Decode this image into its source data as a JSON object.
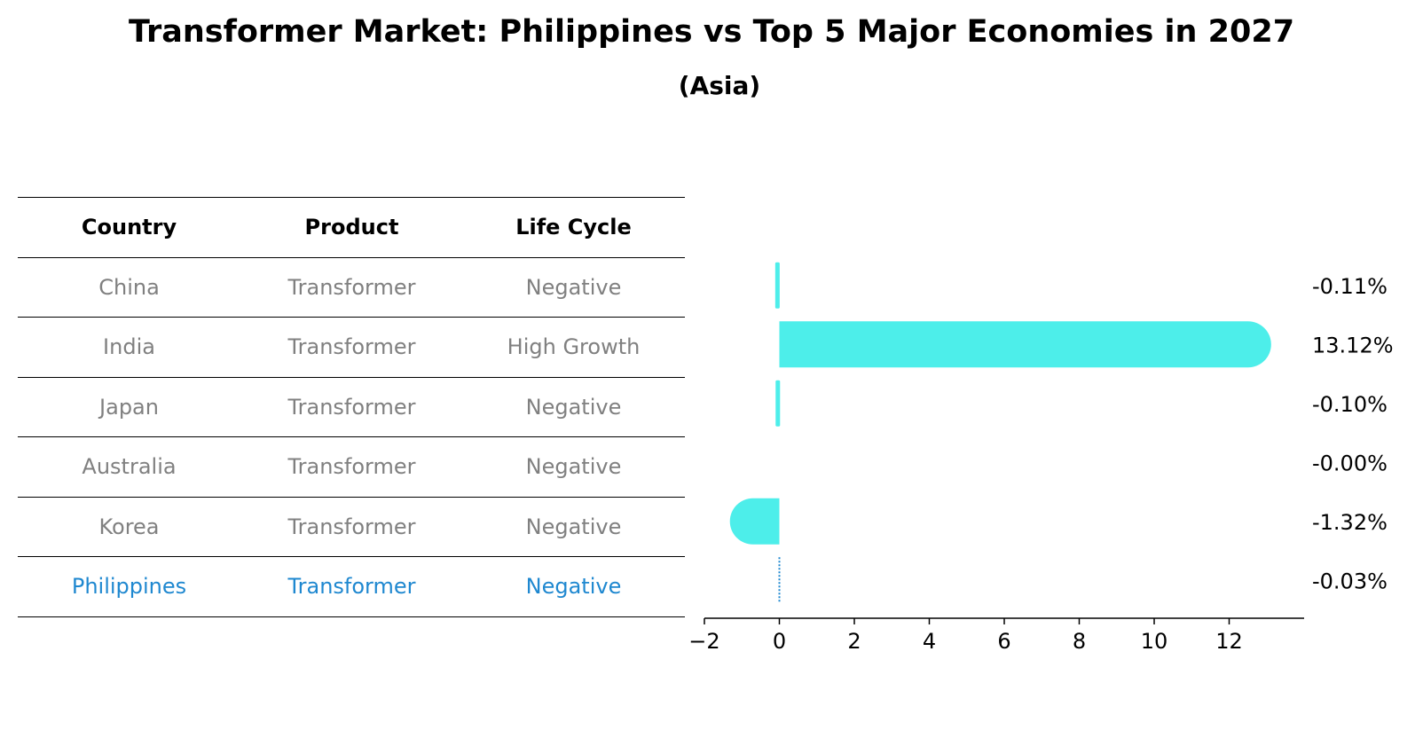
{
  "title": "Transformer Market: Philippines vs Top 5 Major Economies in 2027",
  "subtitle": "(Asia)",
  "table": {
    "headers": [
      "Country",
      "Product",
      "Life Cycle"
    ],
    "rows": [
      [
        "China",
        "Transformer",
        "Negative"
      ],
      [
        "India",
        "Transformer",
        "High Growth"
      ],
      [
        "Japan",
        "Transformer",
        "Negative"
      ],
      [
        "Australia",
        "Transformer",
        "Negative"
      ],
      [
        "Korea",
        "Transformer",
        "Negative"
      ],
      [
        "Philippines",
        "Transformer",
        "Negative"
      ]
    ],
    "highlight_row": "Philippines"
  },
  "colors": {
    "bar": "#4deeea",
    "highlight": "#1f88d0",
    "muted_text": "#808080"
  },
  "chart_data": {
    "type": "bar",
    "orientation": "horizontal",
    "categories": [
      "China",
      "India",
      "Japan",
      "Australia",
      "Korea",
      "Philippines"
    ],
    "values": [
      -0.11,
      13.12,
      -0.1,
      -0.0,
      -1.32,
      -0.03
    ],
    "value_labels": [
      "-0.11%",
      "13.12%",
      "-0.10%",
      "-0.00%",
      "-1.32%",
      "-0.03%"
    ],
    "xlim": [
      -2,
      14
    ],
    "xticks": [
      -2,
      0,
      2,
      4,
      6,
      8,
      10,
      12
    ],
    "xtick_labels": [
      "−2",
      "0",
      "2",
      "4",
      "6",
      "8",
      "10",
      "12"
    ],
    "xlabel": "",
    "ylabel": "",
    "grid": false,
    "legend": "none"
  }
}
